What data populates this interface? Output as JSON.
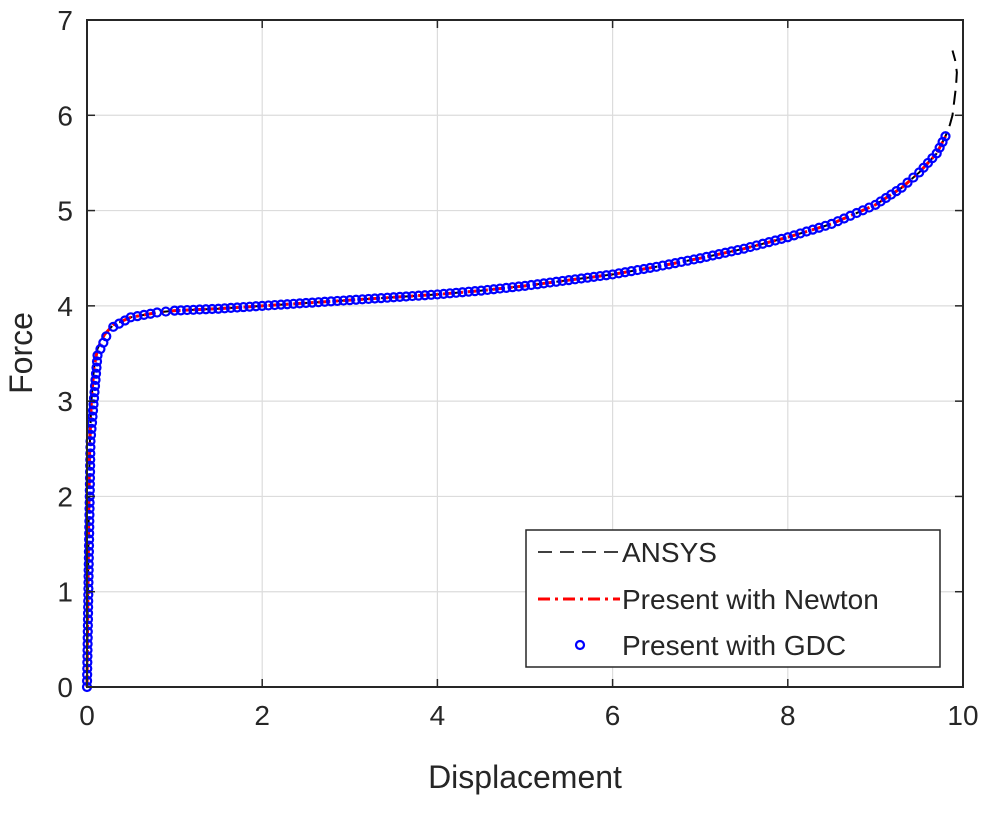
{
  "chart_data": {
    "type": "line",
    "xlabel": "Displacement",
    "ylabel": "Force",
    "xlim": [
      0,
      10
    ],
    "ylim": [
      0,
      7
    ],
    "x_ticks": [
      0,
      2,
      4,
      6,
      8,
      10
    ],
    "y_ticks": [
      0,
      1,
      2,
      3,
      4,
      5,
      6,
      7
    ],
    "x_tick_labels": [
      "0",
      "2",
      "4",
      "6",
      "8",
      "10"
    ],
    "y_tick_labels": [
      "0",
      "1",
      "2",
      "3",
      "4",
      "5",
      "6",
      "7"
    ],
    "grid": true,
    "legend_position": "bottom-right",
    "series": [
      {
        "name": "ANSYS",
        "style": "dashed",
        "color": "#000000",
        "x": [
          0,
          0.005,
          0.01,
          0.02,
          0.03,
          0.05,
          0.08,
          0.12,
          0.2,
          0.3,
          0.5,
          0.8,
          1.0,
          1.5,
          2.0,
          2.5,
          3.0,
          3.5,
          4.0,
          4.5,
          5.0,
          5.5,
          6.0,
          6.5,
          7.0,
          7.5,
          8.0,
          8.5,
          9.0,
          9.3,
          9.5,
          9.7,
          9.8,
          9.85,
          9.88,
          9.9,
          9.92,
          9.93,
          9.91,
          9.88
        ],
        "y": [
          0,
          0.5,
          1.0,
          1.8,
          2.5,
          3.0,
          3.35,
          3.55,
          3.7,
          3.8,
          3.88,
          3.93,
          3.95,
          3.97,
          4.0,
          4.03,
          4.06,
          4.09,
          4.12,
          4.16,
          4.21,
          4.27,
          4.33,
          4.41,
          4.5,
          4.6,
          4.72,
          4.86,
          5.06,
          5.24,
          5.4,
          5.6,
          5.78,
          5.9,
          6.0,
          6.15,
          6.3,
          6.45,
          6.58,
          6.68
        ]
      },
      {
        "name": "Present with Newton",
        "style": "dash-dot",
        "color": "#ff0000",
        "x": [
          0,
          0.005,
          0.01,
          0.02,
          0.03,
          0.05,
          0.08,
          0.12,
          0.2,
          0.3,
          0.5,
          0.8,
          1.0,
          1.5,
          2.0,
          2.5,
          3.0,
          3.5,
          4.0,
          4.5,
          5.0,
          5.5,
          6.0,
          6.5,
          7.0,
          7.5,
          8.0,
          8.5,
          9.0,
          9.3,
          9.5,
          9.7,
          9.8
        ],
        "y": [
          0,
          0.5,
          1.0,
          1.8,
          2.5,
          3.0,
          3.35,
          3.55,
          3.7,
          3.8,
          3.88,
          3.93,
          3.95,
          3.97,
          4.0,
          4.03,
          4.06,
          4.09,
          4.12,
          4.16,
          4.21,
          4.27,
          4.33,
          4.41,
          4.5,
          4.6,
          4.72,
          4.86,
          5.06,
          5.24,
          5.4,
          5.6,
          5.78
        ]
      },
      {
        "name": "Present with GDC",
        "style": "markers",
        "color": "#0000ff",
        "x": [
          0,
          0.04,
          0.12,
          0.22,
          0.3,
          0.5,
          0.8,
          1.0,
          1.5,
          2.0,
          2.5,
          3.0,
          3.5,
          4.0,
          4.5,
          5.0,
          5.5,
          6.0,
          6.5,
          7.0,
          7.5,
          8.0,
          8.5,
          9.0,
          9.3,
          9.5,
          9.7,
          9.8
        ],
        "y": [
          0,
          2.58,
          3.48,
          3.68,
          3.78,
          3.88,
          3.93,
          3.95,
          3.97,
          4.0,
          4.03,
          4.06,
          4.09,
          4.12,
          4.16,
          4.21,
          4.27,
          4.33,
          4.41,
          4.5,
          4.6,
          4.72,
          4.86,
          5.06,
          5.24,
          5.4,
          5.6,
          5.78
        ]
      }
    ]
  }
}
